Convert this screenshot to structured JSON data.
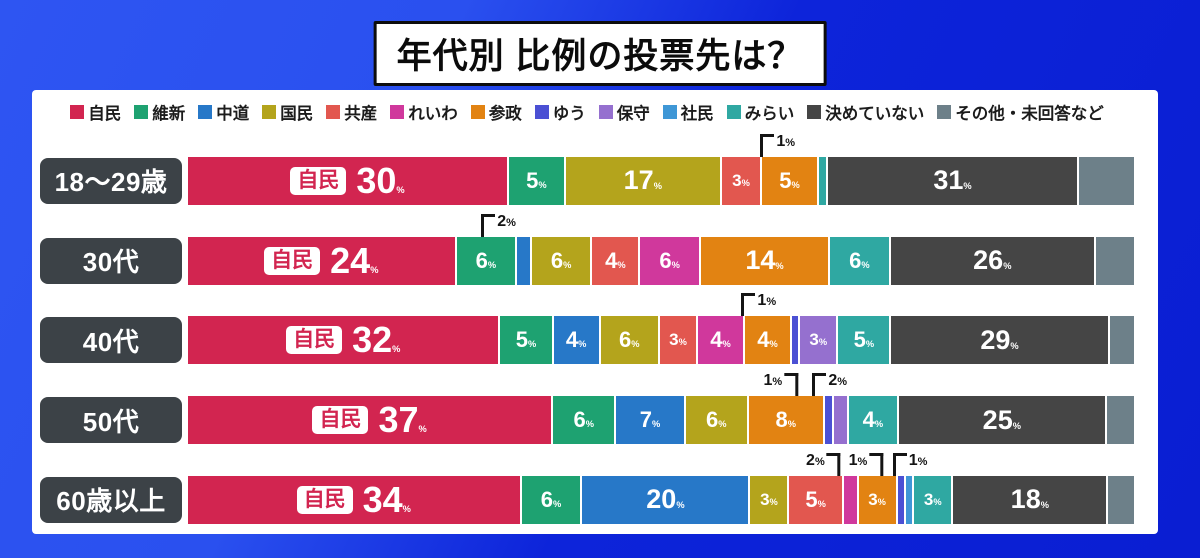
{
  "colors": {
    "background_light_blue": "#2e55f2",
    "background_deep_blue": "#0a1ed2",
    "panel_white": "#ffffff",
    "age_pill_gray": "#3c4247",
    "callout_line_black": "#141414",
    "title_text_black": "#0b0b0b"
  },
  "chart_data": {
    "type": "bar",
    "stacked": true,
    "orientation": "horizontal",
    "unit": "%",
    "title": "年代別 比例の投票先は？",
    "legend_position": "top",
    "axis": "none (percent labels printed on segments, 100% total per row)",
    "legend": [
      {
        "label": "自民",
        "color": "#d22550"
      },
      {
        "label": "維新",
        "color": "#1ea271"
      },
      {
        "label": "中道",
        "color": "#2778c8"
      },
      {
        "label": "国民",
        "color": "#b4a41c"
      },
      {
        "label": "共産",
        "color": "#e2574f"
      },
      {
        "label": "れいわ",
        "color": "#d0389c"
      },
      {
        "label": "参政",
        "color": "#e28312"
      },
      {
        "label": "ゆう",
        "color": "#4b50d4"
      },
      {
        "label": "保守",
        "color": "#9570cf"
      },
      {
        "label": "社民",
        "color": "#3f97d6"
      },
      {
        "label": "みらい",
        "color": "#2fa8a2"
      },
      {
        "label": "決めていない",
        "color": "#454545"
      },
      {
        "label": "その他・未回答など",
        "color": "#6d8089"
      }
    ],
    "rows": [
      {
        "label": "18〜29歳",
        "segments": [
          {
            "party": "自民",
            "value": 30,
            "badge": true
          },
          {
            "party": "維新",
            "value": 5
          },
          {
            "party": "国民",
            "value": 17
          },
          {
            "party": "共産",
            "value": 3
          },
          {
            "party": "参政",
            "value": 5
          },
          {
            "party": "みらい",
            "value": 1,
            "callout": "right"
          },
          {
            "party": "決めていない",
            "value": 31
          },
          {
            "party": "その他・未回答など",
            "value": 8,
            "label_hidden": true
          }
        ]
      },
      {
        "label": "30代",
        "segments": [
          {
            "party": "自民",
            "value": 24,
            "badge": true
          },
          {
            "party": "維新",
            "value": 6
          },
          {
            "party": "中道",
            "value": 2,
            "callout": "right"
          },
          {
            "party": "国民",
            "value": 6
          },
          {
            "party": "共産",
            "value": 4
          },
          {
            "party": "れいわ",
            "value": 6
          },
          {
            "party": "参政",
            "value": 14
          },
          {
            "party": "みらい",
            "value": 6
          },
          {
            "party": "決めていない",
            "value": 26
          },
          {
            "party": "その他・未回答など",
            "value": 6,
            "label_hidden": true
          }
        ]
      },
      {
        "label": "40代",
        "segments": [
          {
            "party": "自民",
            "value": 32,
            "badge": true
          },
          {
            "party": "維新",
            "value": 5
          },
          {
            "party": "中道",
            "value": 4
          },
          {
            "party": "国民",
            "value": 6
          },
          {
            "party": "共産",
            "value": 3
          },
          {
            "party": "れいわ",
            "value": 4
          },
          {
            "party": "参政",
            "value": 4
          },
          {
            "party": "ゆう",
            "value": 1,
            "callout": "right"
          },
          {
            "party": "保守",
            "value": 3
          },
          {
            "party": "みらい",
            "value": 5
          },
          {
            "party": "決めていない",
            "value": 29
          },
          {
            "party": "その他・未回答など",
            "value": 4,
            "label_hidden": true
          }
        ]
      },
      {
        "label": "50代",
        "segments": [
          {
            "party": "自民",
            "value": 37,
            "badge": true
          },
          {
            "party": "維新",
            "value": 6
          },
          {
            "party": "中道",
            "value": 7
          },
          {
            "party": "国民",
            "value": 6
          },
          {
            "party": "参政",
            "value": 8
          },
          {
            "party": "ゆう",
            "value": 1,
            "callout": "left"
          },
          {
            "party": "保守",
            "value": 2,
            "callout": "right"
          },
          {
            "party": "みらい",
            "value": 4
          },
          {
            "party": "決めていない",
            "value": 25
          },
          {
            "party": "その他・未回答など",
            "value": 4,
            "label_hidden": true
          }
        ]
      },
      {
        "label": "60歳以上",
        "segments": [
          {
            "party": "自民",
            "value": 34,
            "badge": true
          },
          {
            "party": "維新",
            "value": 6
          },
          {
            "party": "中道",
            "value": 20
          },
          {
            "party": "国民",
            "value": 3
          },
          {
            "party": "共産",
            "value": 5
          },
          {
            "party": "れいわ",
            "value": 2,
            "callout": "left"
          },
          {
            "party": "参政",
            "value": 3
          },
          {
            "party": "ゆう",
            "value": 1,
            "callout": "left"
          },
          {
            "party": "社民",
            "value": 1,
            "callout": "right"
          },
          {
            "party": "みらい",
            "value": 3
          },
          {
            "party": "決めていない",
            "value": 18
          },
          {
            "party": "その他・未回答など",
            "value": 4,
            "label_hidden": true
          }
        ]
      }
    ]
  }
}
